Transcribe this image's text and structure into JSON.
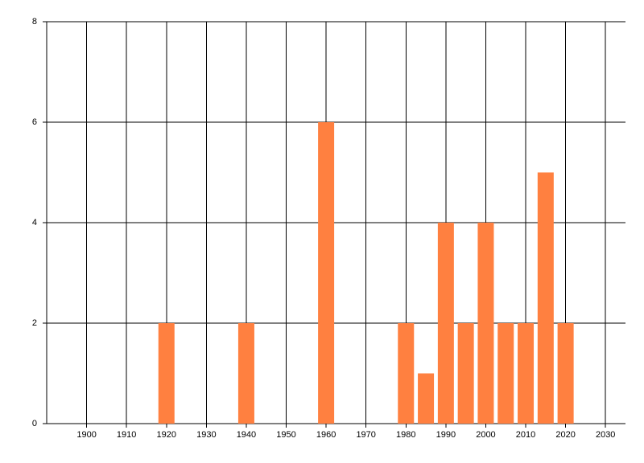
{
  "chart_data": {
    "type": "bar",
    "x": [
      1920,
      1940,
      1960,
      1980,
      1985,
      1990,
      1995,
      2000,
      2005,
      2010,
      2015,
      2020
    ],
    "values": [
      2,
      2,
      6,
      2,
      1,
      4,
      2,
      4,
      2,
      2,
      5,
      2
    ],
    "color": "#ff8040",
    "xlim": [
      1890,
      2035
    ],
    "xticks": [
      1900,
      1910,
      1920,
      1930,
      1940,
      1950,
      1960,
      1970,
      1980,
      1990,
      2000,
      2010,
      2020,
      2030
    ],
    "ylim": [
      0,
      8
    ],
    "yticks": [
      0,
      2,
      4,
      6,
      8
    ],
    "grid": true
  }
}
